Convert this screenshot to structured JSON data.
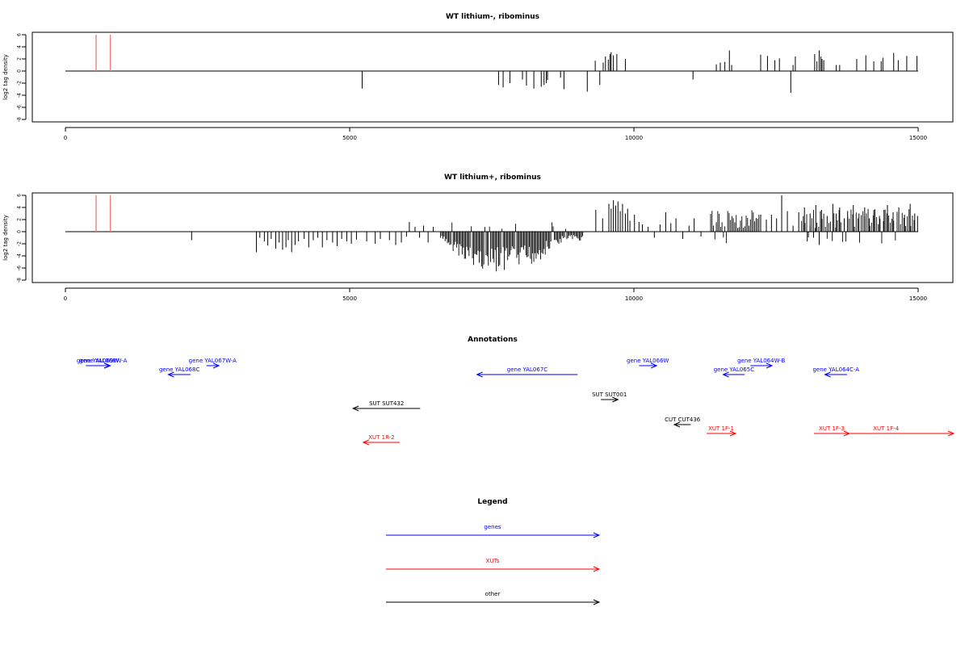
{
  "chart_data": [
    {
      "type": "bar",
      "title": "WT lithium-, ribominus",
      "ylabel": "log2 tag density",
      "xlim": [
        0,
        15000
      ],
      "ylim": [
        -8,
        6
      ],
      "x_ticks": [
        0,
        5000,
        10000,
        15000
      ],
      "y_ticks": [
        6,
        4,
        2,
        0,
        -2,
        -4,
        -6,
        -8
      ],
      "grid": false,
      "markers": [
        {
          "x": 540,
          "y": 6,
          "color": "#f07c7c"
        },
        {
          "x": 790,
          "y": 6,
          "color": "#f07c7c"
        }
      ],
      "bars": [
        [
          5220,
          -2.9
        ],
        [
          7620,
          -2.3
        ],
        [
          7700,
          -2.7
        ],
        [
          7820,
          -2.0
        ],
        [
          8040,
          -1.4
        ],
        [
          8110,
          -2.4
        ],
        [
          8240,
          -2.9
        ],
        [
          8370,
          -2.6
        ],
        [
          8420,
          -2.3
        ],
        [
          8460,
          -2.0
        ],
        [
          8480,
          -1.5
        ],
        [
          8710,
          -1.1
        ],
        [
          8770,
          -3.0
        ],
        [
          9180,
          -3.4
        ],
        [
          9320,
          1.7
        ],
        [
          9400,
          -2.3
        ],
        [
          9460,
          1.4
        ],
        [
          9500,
          2.4
        ],
        [
          9550,
          1.9
        ],
        [
          9580,
          2.8
        ],
        [
          9600,
          3.1
        ],
        [
          9640,
          2.6
        ],
        [
          9700,
          2.8
        ],
        [
          9850,
          2.0
        ],
        [
          11040,
          -1.4
        ],
        [
          11450,
          1.1
        ],
        [
          11520,
          1.4
        ],
        [
          11600,
          1.5
        ],
        [
          11680,
          3.4
        ],
        [
          11720,
          1.0
        ],
        [
          12230,
          2.7
        ],
        [
          12350,
          2.5
        ],
        [
          12480,
          1.8
        ],
        [
          12560,
          2.1
        ],
        [
          12760,
          -3.6
        ],
        [
          12800,
          1.0
        ],
        [
          12840,
          2.4
        ],
        [
          13180,
          2.8
        ],
        [
          13220,
          1.6
        ],
        [
          13260,
          3.4
        ],
        [
          13290,
          2.4
        ],
        [
          13310,
          2.0
        ],
        [
          13340,
          1.8
        ],
        [
          13560,
          1.0
        ],
        [
          13620,
          1.0
        ],
        [
          13920,
          2.0
        ],
        [
          14080,
          2.6
        ],
        [
          14220,
          1.6
        ],
        [
          14350,
          1.6
        ],
        [
          14380,
          2.2
        ],
        [
          14570,
          3.0
        ],
        [
          14650,
          1.8
        ],
        [
          14800,
          2.5
        ],
        [
          14980,
          2.5
        ]
      ]
    },
    {
      "type": "bar",
      "title": "WT lithium+, ribominus",
      "ylabel": "log2 tag density",
      "xlim": [
        0,
        15000
      ],
      "ylim": [
        -8,
        6
      ],
      "x_ticks": [
        0,
        5000,
        10000,
        15000
      ],
      "y_ticks": [
        6,
        4,
        2,
        0,
        -2,
        -4,
        -6,
        -8
      ],
      "grid": false,
      "markers": [
        {
          "x": 540,
          "y": 6,
          "color": "#f07c7c"
        },
        {
          "x": 790,
          "y": 6,
          "color": "#f07c7c"
        }
      ],
      "bars": [
        [
          2220,
          -1.4
        ],
        [
          3360,
          -3.4
        ],
        [
          3420,
          -1.0
        ],
        [
          3500,
          -1.6
        ],
        [
          3560,
          -2.3
        ],
        [
          3620,
          -1.2
        ],
        [
          3700,
          -2.8
        ],
        [
          3760,
          -1.8
        ],
        [
          3820,
          -3.0
        ],
        [
          3880,
          -2.6
        ],
        [
          3920,
          -1.4
        ],
        [
          3980,
          -3.4
        ],
        [
          4040,
          -2.2
        ],
        [
          4100,
          -1.6
        ],
        [
          4200,
          -1.2
        ],
        [
          4280,
          -2.6
        ],
        [
          4360,
          -1.4
        ],
        [
          4440,
          -1.0
        ],
        [
          4520,
          -2.6
        ],
        [
          4600,
          -1.4
        ],
        [
          4700,
          -1.8
        ],
        [
          4780,
          -2.4
        ],
        [
          4860,
          -1.2
        ],
        [
          4950,
          -1.6
        ],
        [
          5030,
          -2.0
        ],
        [
          5120,
          -1.3
        ],
        [
          5300,
          -1.6
        ],
        [
          5450,
          -2.0
        ],
        [
          5540,
          -1.2
        ],
        [
          5700,
          -1.4
        ],
        [
          5810,
          -2.2
        ],
        [
          5910,
          -1.8
        ],
        [
          6000,
          -0.8
        ],
        [
          6050,
          1.6
        ],
        [
          6150,
          0.8
        ],
        [
          6230,
          -1.0
        ],
        [
          6300,
          1.0
        ],
        [
          6380,
          -1.8
        ],
        [
          6470,
          0.8
        ],
        [
          9330,
          3.6
        ],
        [
          9450,
          2.2
        ],
        [
          9560,
          4.6
        ],
        [
          9600,
          3.8
        ],
        [
          9640,
          5.2
        ],
        [
          9680,
          4.3
        ],
        [
          9720,
          5.0
        ],
        [
          9760,
          3.4
        ],
        [
          9800,
          4.6
        ],
        [
          9850,
          3.0
        ],
        [
          9890,
          3.8
        ],
        [
          9930,
          1.8
        ],
        [
          10010,
          2.8
        ],
        [
          10090,
          1.6
        ],
        [
          10150,
          1.2
        ],
        [
          10250,
          0.8
        ],
        [
          10360,
          -1.0
        ],
        [
          10460,
          1.2
        ],
        [
          10560,
          3.2
        ],
        [
          10650,
          1.4
        ],
        [
          10740,
          2.2
        ],
        [
          10860,
          -1.2
        ],
        [
          10970,
          1.0
        ],
        [
          11060,
          2.2
        ],
        [
          11180,
          -0.8
        ],
        [
          12230,
          2.8
        ],
        [
          12330,
          2.0
        ],
        [
          12420,
          2.8
        ],
        [
          12510,
          2.2
        ],
        [
          12600,
          6.0
        ],
        [
          12700,
          3.4
        ],
        [
          12800,
          1.0
        ],
        [
          12900,
          3.2
        ],
        [
          13000,
          4.0
        ],
        [
          13050,
          -1.6
        ],
        [
          13100,
          3.0
        ],
        [
          13160,
          -1.0
        ],
        [
          13200,
          4.4
        ],
        [
          13260,
          -2.2
        ],
        [
          13300,
          3.6
        ],
        [
          13400,
          2.6
        ],
        [
          13500,
          4.6
        ],
        [
          13560,
          3.0
        ],
        [
          13620,
          4.0
        ],
        [
          13700,
          2.2
        ],
        [
          13760,
          3.4
        ],
        [
          13860,
          4.4
        ],
        [
          13960,
          3.0
        ],
        [
          14060,
          4.0
        ],
        [
          14140,
          2.2
        ],
        [
          14220,
          3.6
        ],
        [
          14320,
          2.6
        ],
        [
          14400,
          3.6
        ],
        [
          14460,
          4.4
        ],
        [
          14560,
          3.2
        ],
        [
          14660,
          4.0
        ],
        [
          14760,
          2.8
        ],
        [
          14860,
          4.6
        ],
        [
          14940,
          3.0
        ],
        [
          14990,
          2.6
        ]
      ],
      "dense_segments": [
        {
          "from": 6600,
          "to": 9100,
          "step": 20,
          "seed": 7,
          "profile": "neg_deep"
        },
        {
          "from": 11350,
          "to": 12200,
          "step": 25,
          "seed": 13,
          "profile": "pos"
        },
        {
          "from": 12950,
          "to": 14950,
          "step": 30,
          "seed": 29,
          "profile": "pos"
        }
      ]
    }
  ],
  "annotations": {
    "title": "Annotations",
    "features": [
      {
        "label": "gene YAL069W",
        "from": 360,
        "to": 780,
        "row": 0,
        "color": "blue"
      },
      {
        "label": "gene YAL068W-A",
        "from": 540,
        "to": 790,
        "row": 0,
        "color": "blue"
      },
      {
        "label": "gene YAL068C",
        "from": 1810,
        "to": 2200,
        "row": 1,
        "color": "blue"
      },
      {
        "label": "gene YAL067W-A",
        "from": 2480,
        "to": 2700,
        "row": 0,
        "color": "blue"
      },
      {
        "label": "gene YAL067C",
        "from": 7240,
        "to": 9010,
        "row": 1,
        "color": "blue"
      },
      {
        "label": "gene YAL066W",
        "from": 10090,
        "to": 10400,
        "row": 0,
        "color": "blue"
      },
      {
        "label": "gene YAL065C",
        "from": 11570,
        "to": 11950,
        "row": 1,
        "color": "blue"
      },
      {
        "label": "gene YAL064W-B",
        "from": 12050,
        "to": 12430,
        "row": 0,
        "color": "blue"
      },
      {
        "label": "gene YAL064C-A",
        "from": 13360,
        "to": 13750,
        "row": 1,
        "color": "blue"
      },
      {
        "label": "SUT SUT432",
        "from": 5060,
        "to": 6240,
        "row": 2,
        "color": "black"
      },
      {
        "label": "SUT SUT001",
        "from": 9420,
        "to": 9720,
        "row": 3,
        "color": "black"
      },
      {
        "label": "CUT CUT436",
        "from": 10710,
        "to": 11000,
        "row": 4,
        "color": "black"
      },
      {
        "label": "XUT 1R-2",
        "from": 5240,
        "to": 5880,
        "row": 5,
        "color": "red"
      },
      {
        "label": "XUT 1F-1",
        "from": 11280,
        "to": 11790,
        "row": 6,
        "color": "red"
      },
      {
        "label": "XUT 1F-3",
        "from": 13170,
        "to": 13790,
        "row": 6,
        "color": "red"
      },
      {
        "label": "XUT 1F-4",
        "from": 13170,
        "to": 15700,
        "row": 6,
        "color": "red"
      }
    ]
  },
  "legend": {
    "title": "Legend",
    "items": [
      {
        "label": "genes",
        "color": "blue"
      },
      {
        "label": "XUTs",
        "color": "red"
      },
      {
        "label": "other",
        "color": "black"
      }
    ]
  },
  "colors": {
    "blue": "#0000ff",
    "red": "#ff0000",
    "black": "#000000",
    "marker": "#f07c7c"
  }
}
